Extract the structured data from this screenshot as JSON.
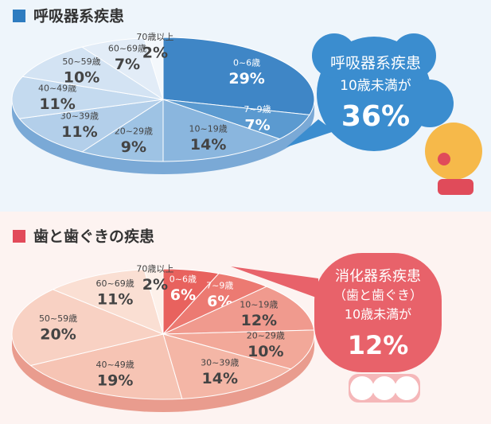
{
  "chart_data": [
    {
      "type": "pie",
      "title": "呼吸器系疾患",
      "categories": [
        "0~6歳",
        "7~9歳",
        "10~19歳",
        "20~29歳",
        "30~39歳",
        "40~49歳",
        "50~59歳",
        "60~69歳",
        "70歳以上"
      ],
      "values": [
        29,
        7,
        14,
        9,
        11,
        11,
        10,
        7,
        2
      ],
      "value_labels": [
        "29%",
        "7%",
        "14%",
        "9%",
        "11%",
        "11%",
        "10%",
        "7%",
        "2%"
      ],
      "colors": [
        "#3f86c6",
        "#5b9ad0",
        "#8ab6de",
        "#9ec3e4",
        "#b3cfea",
        "#c4daef",
        "#d3e3f3",
        "#e2ecf7",
        "#f4f8fc"
      ],
      "annotations": [
        "呼吸器系疾患",
        "10歳未満が",
        "36%"
      ]
    },
    {
      "type": "pie",
      "title": "歯と歯ぐきの疾患",
      "categories": [
        "0~6歳",
        "7~9歳",
        "10~19歳",
        "20~29歳",
        "30~39歳",
        "40~49歳",
        "50~59歳",
        "60~69歳",
        "70歳以上"
      ],
      "values": [
        6,
        6,
        12,
        10,
        14,
        19,
        20,
        11,
        2
      ],
      "value_labels": [
        "6%",
        "6%",
        "12%",
        "10%",
        "14%",
        "19%",
        "20%",
        "11%",
        "2%"
      ],
      "colors": [
        "#e8625e",
        "#ec7a72",
        "#f09a8e",
        "#f2a899",
        "#f4b6a6",
        "#f6c4b4",
        "#f8d1c3",
        "#fadfd3",
        "#fdf1ea"
      ],
      "annotations": [
        "消化器系疾患",
        "（歯と歯ぐき）",
        "10歳未満が",
        "12%"
      ]
    }
  ]
}
